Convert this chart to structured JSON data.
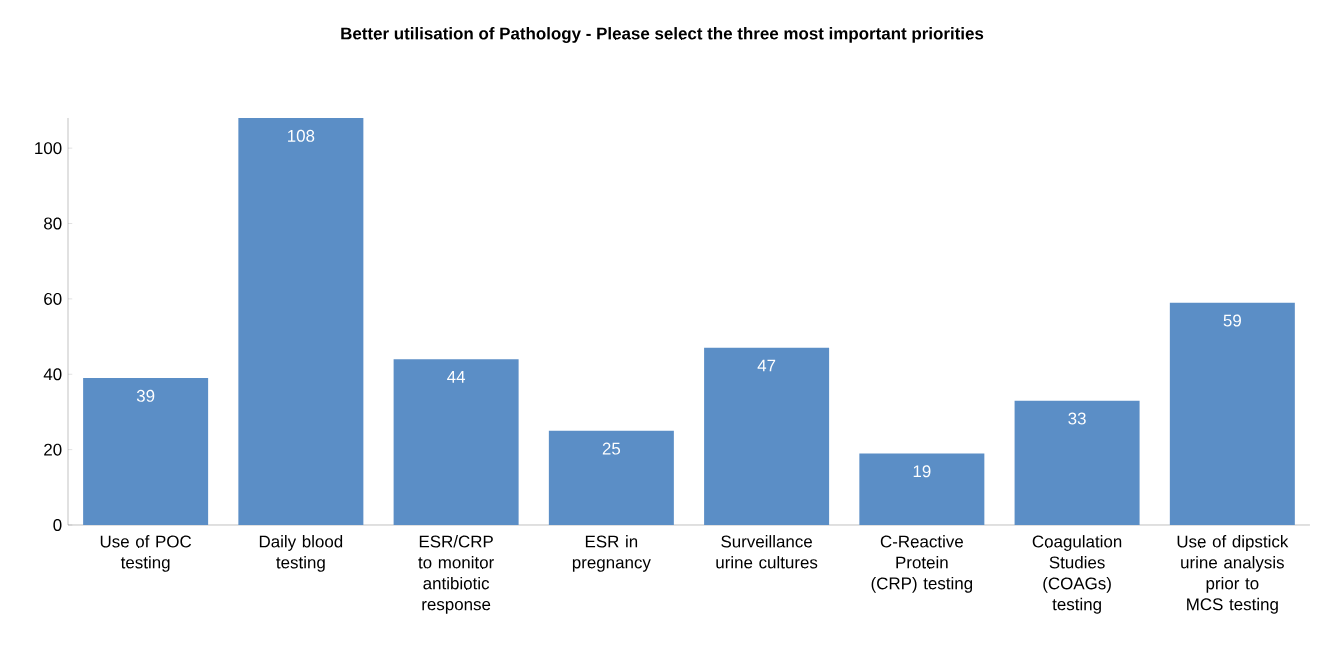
{
  "chart_data": {
    "type": "bar",
    "title": "Better utilisation of Pathology - Please select the three most important priorities",
    "categories": [
      "Use of POC testing",
      "Daily blood testing",
      "ESR/CRP to monitor antibiotic response",
      "ESR in pregnancy",
      "Surveillance urine cultures",
      "C-Reactive Protein (CRP) testing",
      "Coagulation Studies (COAGs) testing",
      "Use of dipstick urine analysis prior to MCS testing"
    ],
    "values": [
      39,
      108,
      44,
      25,
      47,
      19,
      33,
      59
    ],
    "color": "#5b8ec6",
    "ylim": [
      0,
      108
    ],
    "yticks": [
      0,
      20,
      40,
      60,
      80,
      100
    ],
    "data_labels": true,
    "grid": false
  }
}
